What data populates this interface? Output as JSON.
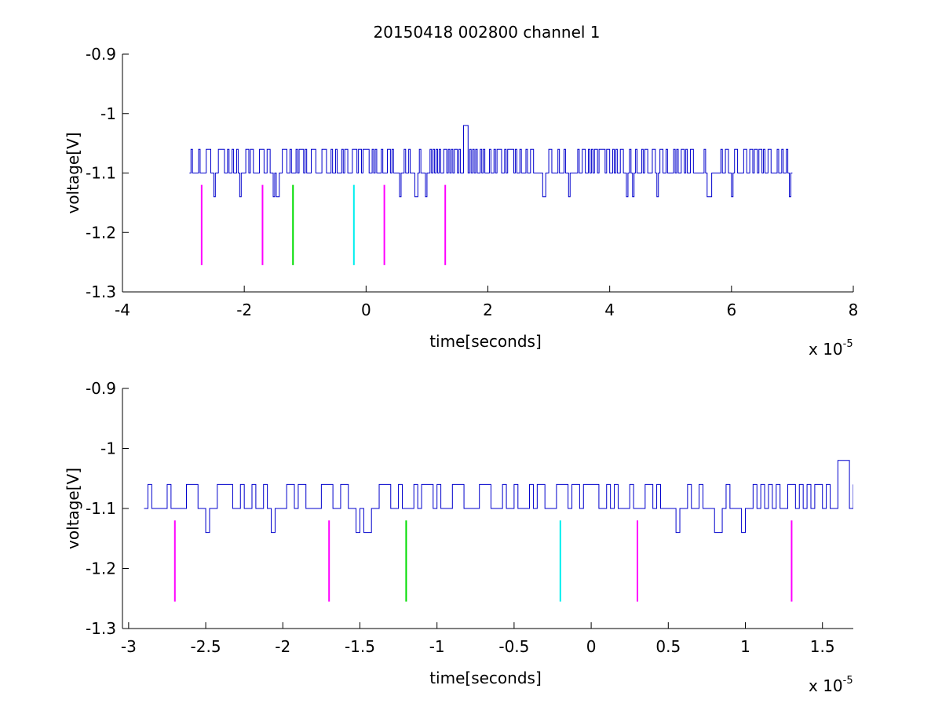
{
  "figure": {
    "title": "20150418 002800 channel 1",
    "colors": {
      "signal": "#0000cc",
      "magenta": "#ff00ff",
      "green": "#00dd00",
      "cyan": "#00eeee",
      "axes": "#000000",
      "background": "#ffffff"
    }
  },
  "chart_data": [
    {
      "type": "line",
      "title": "20150418 002800 channel 1",
      "xlabel": "time[seconds]",
      "ylabel": "voltage[V]",
      "x_exponent_label": "x 10",
      "x_exponent": "-5",
      "x_unit_scale": 1e-05,
      "xlim": [
        -4,
        8
      ],
      "ylim": [
        -1.3,
        -0.9
      ],
      "y_reversed": true,
      "xticks": [
        -4,
        -2,
        0,
        2,
        4,
        6,
        8
      ],
      "xtick_labels": [
        "-4",
        "-2",
        "0",
        "2",
        "4",
        "6",
        "8"
      ],
      "yticks": [
        -0.9,
        -1,
        -1.1,
        -1.2,
        -1.3
      ],
      "ytick_labels": [
        "-0.9",
        "-1",
        "-1.1",
        "-1.2",
        "-1.3"
      ],
      "grid": false,
      "signal": {
        "x_start": -2.9,
        "x_end": 7.0,
        "baseline": -1.1,
        "levels": [
          -1.06,
          -1.1,
          -1.14
        ],
        "spike": {
          "x": 1.6,
          "y": -1.02
        }
      },
      "markers": [
        {
          "x": -2.7,
          "color": "magenta",
          "y_top": -1.12,
          "y_bottom": -1.255
        },
        {
          "x": -1.7,
          "color": "magenta",
          "y_top": -1.12,
          "y_bottom": -1.255
        },
        {
          "x": -1.2,
          "color": "green",
          "y_top": -1.12,
          "y_bottom": -1.255
        },
        {
          "x": -0.2,
          "color": "cyan",
          "y_top": -1.12,
          "y_bottom": -1.255
        },
        {
          "x": 0.3,
          "color": "magenta",
          "y_top": -1.12,
          "y_bottom": -1.255
        },
        {
          "x": 1.3,
          "color": "magenta",
          "y_top": -1.12,
          "y_bottom": -1.255
        }
      ]
    },
    {
      "type": "line",
      "title": "",
      "xlabel": "time[seconds]",
      "ylabel": "voltage[V]",
      "x_exponent_label": "x 10",
      "x_exponent": "-5",
      "x_unit_scale": 1e-05,
      "xlim": [
        -3.04,
        1.7
      ],
      "ylim": [
        -1.3,
        -0.9
      ],
      "y_reversed": true,
      "xticks": [
        -3,
        -2.5,
        -2,
        -1.5,
        -1,
        -0.5,
        0,
        0.5,
        1,
        1.5
      ],
      "xtick_labels": [
        "-3",
        "-2.5",
        "-2",
        "-1.5",
        "-1",
        "-0.5",
        "0",
        "0.5",
        "1",
        "1.5"
      ],
      "yticks": [
        -0.9,
        -1,
        -1.1,
        -1.2,
        -1.3
      ],
      "ytick_labels": [
        "-0.9",
        "-1",
        "-1.1",
        "-1.2",
        "-1.3"
      ],
      "grid": false,
      "signal": {
        "x_start": -2.9,
        "x_end": 1.7,
        "baseline": -1.1,
        "levels": [
          -1.06,
          -1.1,
          -1.14
        ],
        "spike": {
          "x": 1.6,
          "y": -1.02
        }
      },
      "markers": [
        {
          "x": -2.7,
          "color": "magenta",
          "y_top": -1.12,
          "y_bottom": -1.255
        },
        {
          "x": -1.7,
          "color": "magenta",
          "y_top": -1.12,
          "y_bottom": -1.255
        },
        {
          "x": -1.2,
          "color": "green",
          "y_top": -1.12,
          "y_bottom": -1.255
        },
        {
          "x": -0.2,
          "color": "cyan",
          "y_top": -1.12,
          "y_bottom": -1.255
        },
        {
          "x": 0.3,
          "color": "magenta",
          "y_top": -1.12,
          "y_bottom": -1.255
        },
        {
          "x": 1.3,
          "color": "magenta",
          "y_top": -1.12,
          "y_bottom": -1.255
        }
      ]
    }
  ]
}
